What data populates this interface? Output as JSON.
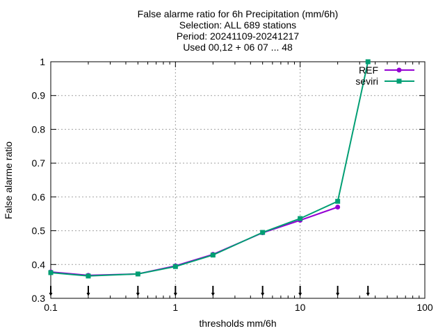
{
  "chart_data": {
    "type": "line",
    "title_lines": [
      "False alarme ratio  for 6h Precipitation (mm/6h)",
      "Selection: ALL    689 stations",
      "Period: 20241109-20241217",
      "Used 00,12 + 06 07 ... 48"
    ],
    "xlabel": "thresholds mm/6h",
    "ylabel": "False alarme ratio",
    "xscale": "log",
    "xlim": [
      0.1,
      100
    ],
    "ylim": [
      0.3,
      1.0
    ],
    "xticks": [
      0.1,
      1,
      10,
      100
    ],
    "xtick_labels": [
      "0.1",
      "1",
      "10",
      "100"
    ],
    "yticks": [
      0.3,
      0.4,
      0.5,
      0.6,
      0.7,
      0.8,
      0.9,
      1.0
    ],
    "ytick_labels": [
      "0.3",
      "0.4",
      "0.5",
      "0.6",
      "0.7",
      "0.8",
      "0.9",
      "1"
    ],
    "grid": true,
    "legend_position": "top-right",
    "series": [
      {
        "name": "REF",
        "color": "#9400d3",
        "marker": "circle",
        "x": [
          0.1,
          0.2,
          0.5,
          1,
          2,
          5,
          10,
          20
        ],
        "y": [
          0.378,
          0.368,
          0.372,
          0.396,
          0.43,
          0.494,
          0.531,
          0.57
        ]
      },
      {
        "name": "seviri",
        "color": "#009e73",
        "marker": "square",
        "x": [
          0.1,
          0.2,
          0.5,
          1,
          2,
          5,
          10,
          20,
          35
        ],
        "y": [
          0.376,
          0.366,
          0.372,
          0.394,
          0.428,
          0.495,
          0.536,
          0.587,
          1.0
        ]
      }
    ],
    "arrow_markers_x": [
      0.1,
      0.2,
      0.5,
      1,
      2,
      5,
      10,
      20,
      35
    ]
  }
}
